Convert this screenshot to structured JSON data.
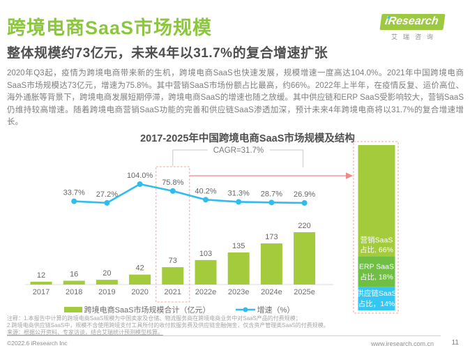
{
  "header": {
    "title": "跨境电商SaaS市场规模",
    "subtitle": "整体规模约73亿元，未来4年以31.7%的复合增速扩张",
    "logo": {
      "brand": "iResearch",
      "brand_cn": "艾瑞咨询"
    }
  },
  "body": {
    "paragraph": "2020年Q3起，疫情为跨境电商带来新的生机，跨境电商SaaS也快速发展，规模增速一度高达104.0%。2021年中国跨境电商SaaS市场规模达73亿元，增速为75.8%。其中营销SaaS市场份额占比最高，约66%。2022年上半年，在疫情反复、运价高位、海外通胀等背景下，跨境电商发展短期停滞，跨境电商SaaS的增速也随之放缓。其中供应链和ERP SaaS受影响较大，营销SaaS仍维持较高增速。随着跨境电商营销SaaS功能的完善和供应链SaaS渗透加深，预计未来4年跨境电商将以31.7%的复合增速增长。"
  },
  "chart_data": {
    "type": "bar",
    "title": "2017-2025年中国跨境电商SaaS市场规模及结构",
    "categories": [
      "2017",
      "2018",
      "2019",
      "2020",
      "2021",
      "2022e",
      "2023e",
      "2024e",
      "2025e"
    ],
    "series": [
      {
        "name": "跨境电商SaaS市场规模合计（亿元）",
        "type": "bar",
        "color": "#a3cb3c",
        "values": [
          12,
          16,
          20,
          42,
          73,
          103,
          135,
          173,
          220
        ]
      },
      {
        "name": "增速（%）",
        "type": "line",
        "color": "#2fbdef",
        "categories": [
          "2018",
          "2019",
          "2020",
          "2021",
          "2022e",
          "2023e",
          "2024e",
          "2025e"
        ],
        "values": [
          33.7,
          27.2,
          104.0,
          75.8,
          40.2,
          31.3,
          28.7,
          26.9
        ]
      }
    ],
    "legend": [
      "跨境电商SaaS市场规模合计（亿元）",
      "增速（%）"
    ],
    "legend_position": "bottom",
    "grid": "off",
    "annotations": {
      "cagr_label": "CAGR=31.7%",
      "highlight_category": "2021"
    },
    "structure_breakdown": {
      "segments": [
        {
          "name": "营销SaaS",
          "label_line1": "营销SaaS",
          "label_line2": "占比, 66%",
          "value": 66,
          "color": "#a3cb3c"
        },
        {
          "name": "ERP SaaS",
          "label_line1": "ERP SaaS",
          "label_line2": "占比, 18%",
          "value": 18,
          "color": "#6fbf44"
        },
        {
          "name": "供应链SaaS",
          "label_line1": "供应链SaaS",
          "label_line2": "占比，14%",
          "value": 14,
          "color": "#35c6f3"
        }
      ]
    }
  },
  "footnotes": {
    "line1": "注释：1.本报告中计算的跨境电商SaaS规模为中国卖家及仓储、物流服务商在跨境电商业务中对SaaS产品的付费规模；",
    "line2": "2.跨境电商供应链SaaS中，规模不含使用跨境支付工具所付的收付款服务费及供应链金融佣金，仅含资产管理类SaaS的付费规模。",
    "source": "来源：根据公开资料、专家访谈，结合艾瑞统计预测模型核算。"
  },
  "footer": {
    "copyright": "©2022.6 iResearch Inc",
    "website": "www.iresearch.com.cn",
    "page_number": "11"
  },
  "colors": {
    "accent_green": "#8cc63f",
    "bar_green": "#a3cb3c",
    "erp_green": "#6fbf44",
    "supply_cyan": "#35c6f3",
    "line_blue": "#2fbdef",
    "highlight_pink": "#f3a7a3",
    "arrow_red": "#ef8a85"
  }
}
